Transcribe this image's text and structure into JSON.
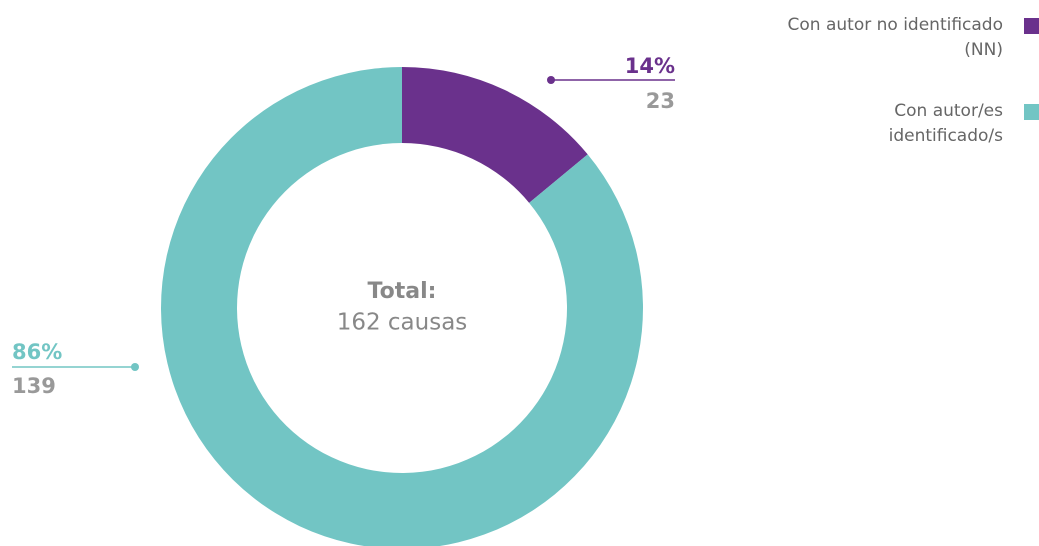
{
  "chart_data": {
    "type": "donut",
    "categories": [
      "Con autor no identificado (NN)",
      "Con autor/es identificado/s"
    ],
    "values": [
      14,
      86
    ],
    "value_labels": [
      "14%",
      "86%"
    ],
    "counts": [
      23,
      139
    ],
    "colors": [
      "#6a318c",
      "#72c5c4"
    ],
    "center_label": "Total:",
    "center_text": "162 causas"
  }
}
